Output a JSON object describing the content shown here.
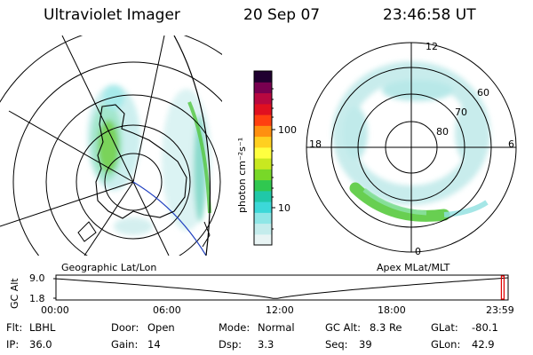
{
  "header": {
    "instrument": "Ultraviolet Imager",
    "date": "20 Sep 07",
    "time": "23:46:58 UT"
  },
  "left_panel": {
    "caption": "Geographic Lat/Lon"
  },
  "right_panel": {
    "caption": "Apex MLat/MLT",
    "mlt_labels": [
      "12",
      "18",
      "6",
      "0"
    ],
    "lat_labels": [
      "60",
      "70",
      "80"
    ]
  },
  "colorbar": {
    "unit": "photon cm⁻²s⁻¹",
    "tick_labels": [
      "100",
      "10"
    ],
    "colors": [
      "#e8f4f4",
      "#c4ecec",
      "#8fe6e6",
      "#3cd8d8",
      "#20c8a8",
      "#30c850",
      "#78d828",
      "#c8e820",
      "#ffff40",
      "#ffd020",
      "#ff9010",
      "#ff4010",
      "#e01020",
      "#b80840",
      "#780050",
      "#200030"
    ]
  },
  "altitude_plot": {
    "ylabel": "GC Alt",
    "y_ticks": [
      "9.0",
      "1.8"
    ],
    "x_ticks": [
      "00:00",
      "06:00",
      "12:00",
      "18:00",
      "23:59"
    ],
    "ylim": [
      1.8,
      9.0
    ],
    "current_time_fraction": 0.991
  },
  "info": {
    "row1": [
      {
        "label": "Flt:",
        "value": "LBHL"
      },
      {
        "label": "Door:",
        "value": "Open"
      },
      {
        "label": "Mode:",
        "value": "Normal"
      },
      {
        "label": "GC Alt:",
        "value": "8.3 Re"
      },
      {
        "label": "GLat:",
        "value": "-80.1"
      }
    ],
    "row2": [
      {
        "label": "IP:",
        "value": "36.0"
      },
      {
        "label": "Gain:",
        "value": "14"
      },
      {
        "label": "Dsp:",
        "value": "3.3"
      },
      {
        "label": "Seq:",
        "value": "39"
      },
      {
        "label": "GLon:",
        "value": "42.9"
      }
    ]
  }
}
